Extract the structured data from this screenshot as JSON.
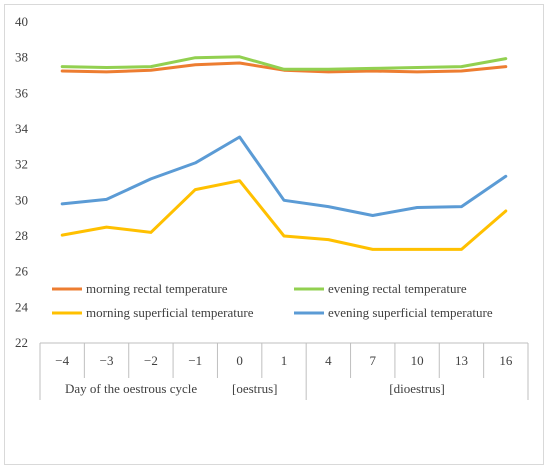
{
  "chart_data": {
    "type": "line",
    "categories": [
      "−4",
      "−3",
      "−2",
      "−1",
      "0",
      "1",
      "4",
      "7",
      "10",
      "13",
      "16"
    ],
    "ylim": [
      22,
      40
    ],
    "yticks": [
      "22",
      "24",
      "26",
      "28",
      "30",
      "32",
      "34",
      "36",
      "38",
      "40"
    ],
    "ytick_values": [
      22,
      24,
      26,
      28,
      30,
      32,
      34,
      36,
      38,
      40
    ],
    "group_labels": [
      "Day of the oestrous cycle",
      "[oestrus]",
      "[dioestrus]"
    ],
    "grid": false,
    "legend_position": "bottom (inside plot)",
    "series": [
      {
        "name": "morning rectal temperature",
        "color": "#ED7D31",
        "values": [
          37.25,
          37.2,
          37.3,
          37.6,
          37.7,
          37.3,
          37.2,
          37.25,
          37.2,
          37.25,
          37.5
        ]
      },
      {
        "name": "evening rectal temperature",
        "color": "#92D050",
        "values": [
          37.5,
          37.45,
          37.5,
          38.0,
          38.05,
          37.35,
          37.35,
          37.4,
          37.45,
          37.5,
          37.95
        ]
      },
      {
        "name": "morning superficial temperature",
        "color": "#FFC000",
        "values": [
          28.05,
          28.5,
          28.2,
          30.6,
          31.1,
          28.0,
          27.8,
          27.25,
          27.25,
          27.25,
          29.4
        ]
      },
      {
        "name": "evening superficial temperature",
        "color": "#5B9BD5",
        "values": [
          29.8,
          30.05,
          31.2,
          32.1,
          33.55,
          30.0,
          29.65,
          29.15,
          29.6,
          29.65,
          31.35
        ]
      }
    ]
  }
}
